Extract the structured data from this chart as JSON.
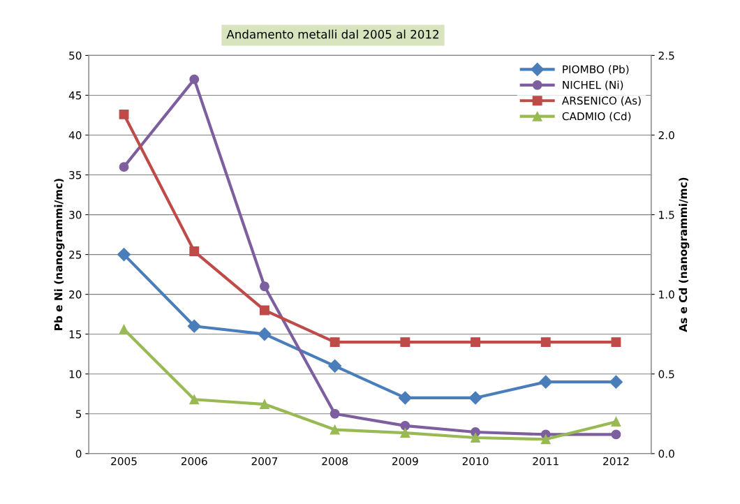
{
  "chart_data": {
    "type": "line",
    "title": "Andamento metalli dal 2005 al 2012",
    "categories": [
      "2005",
      "2006",
      "2007",
      "2008",
      "2009",
      "2010",
      "2011",
      "2012"
    ],
    "ylabel": "Pb e Ni (nanogrammi/mc)",
    "y2label": "As e Cd (nanogrammi/mc)",
    "ylim": [
      0,
      50
    ],
    "yticks": [
      0,
      5,
      10,
      15,
      20,
      25,
      30,
      35,
      40,
      45,
      50
    ],
    "y2lim": [
      0,
      2.5
    ],
    "y2ticks": [
      {
        "value": 0,
        "label": "0.0"
      },
      {
        "value": 0.5,
        "label": "0.5"
      },
      {
        "value": 1,
        "label": "1.0"
      },
      {
        "value": 1.5,
        "label": "1.5"
      },
      {
        "value": 2,
        "label": "2.0"
      },
      {
        "value": 2.5,
        "label": "2.5"
      }
    ],
    "grid": "y",
    "legend": "top right",
    "series": [
      {
        "name": "PIOMBO (Pb)",
        "color": "#4a7ebb",
        "marker": "diamond",
        "values": [
          25,
          16,
          15,
          11,
          7,
          7,
          9,
          9
        ]
      },
      {
        "name": "NICHEL (Ni)",
        "color": "#7d5fa0",
        "marker": "circle",
        "values": [
          36,
          47,
          21,
          5,
          3.5,
          2.7,
          2.4,
          2.4
        ]
      },
      {
        "name": "ARSENICO (As)",
        "color": "#be4b48",
        "marker": "square",
        "axis": "y2",
        "values": [
          2.13,
          1.27,
          0.9,
          0.7,
          0.7,
          0.7,
          0.7,
          0.7
        ]
      },
      {
        "name": "CADMIO (Cd)",
        "color": "#98b954",
        "marker": "triangle",
        "axis": "y2",
        "values": [
          0.78,
          0.34,
          0.31,
          0.15,
          0.13,
          0.1,
          0.09,
          0.2
        ]
      }
    ]
  }
}
